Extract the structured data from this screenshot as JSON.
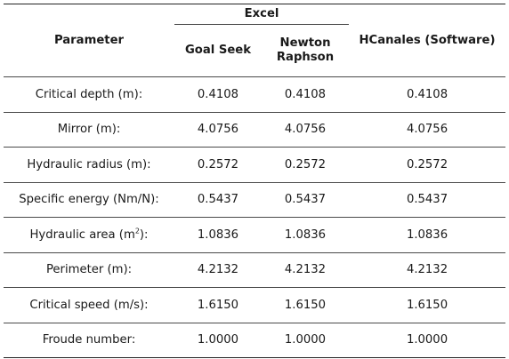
{
  "header": {
    "parameter": "Parameter",
    "group": "Excel",
    "goal_seek": "Goal Seek",
    "newton_line1": "Newton",
    "newton_line2": "Raphson",
    "hcanales": "HCanales (Software)"
  },
  "rows": [
    {
      "label": "Critical depth (m):",
      "goal_seek": "0.4108",
      "newton": "0.4108",
      "hcanales": "0.4108"
    },
    {
      "label": "Mirror (m):",
      "goal_seek": "4.0756",
      "newton": "4.0756",
      "hcanales": "4.0756"
    },
    {
      "label": "Hydraulic radius (m):",
      "goal_seek": "0.2572",
      "newton": "0.2572",
      "hcanales": "0.2572"
    },
    {
      "label": "Specific energy (Nm/N):",
      "goal_seek": "0.5437",
      "newton": "0.5437",
      "hcanales": "0.5437"
    },
    {
      "label_base": "Hydraulic area (m",
      "label_sup": "2",
      "label_end": "):",
      "goal_seek": "1.0836",
      "newton": "1.0836",
      "hcanales": "1.0836"
    },
    {
      "label": "Perimeter (m):",
      "goal_seek": "4.2132",
      "newton": "4.2132",
      "hcanales": "4.2132"
    },
    {
      "label": "Critical speed (m/s):",
      "goal_seek": "1.6150",
      "newton": "1.6150",
      "hcanales": "1.6150"
    },
    {
      "label": "Froude number:",
      "goal_seek": "1.0000",
      "newton": "1.0000",
      "hcanales": "1.0000"
    }
  ]
}
